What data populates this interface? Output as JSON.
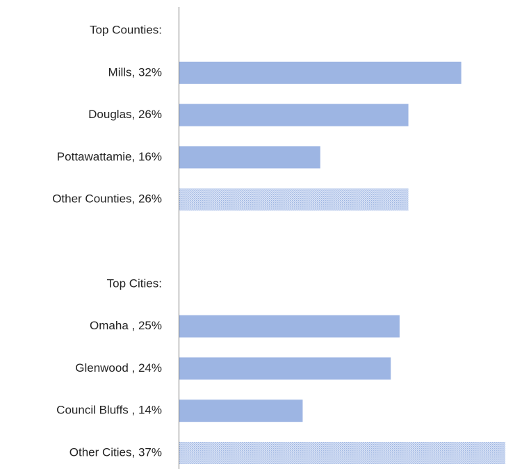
{
  "chart_data": {
    "type": "bar",
    "orientation": "horizontal",
    "categories": [
      "Top Counties:",
      "Mills, 32%",
      "Douglas, 26%",
      "Pottawattamie, 16%",
      "Other Counties, 26%",
      null,
      "Top Cities:",
      "Omaha , 25%",
      "Glenwood , 24%",
      "Council Bluffs , 14%",
      "Other Cities, 37%"
    ],
    "values": [
      null,
      32,
      26,
      16,
      26,
      null,
      null,
      25,
      24,
      14,
      37
    ],
    "fill_pattern": [
      null,
      "solid",
      "solid",
      "solid",
      "dots",
      null,
      null,
      "solid",
      "solid",
      "solid",
      "dots"
    ],
    "color": "#9db5e3",
    "xlim": [
      0,
      37
    ]
  }
}
